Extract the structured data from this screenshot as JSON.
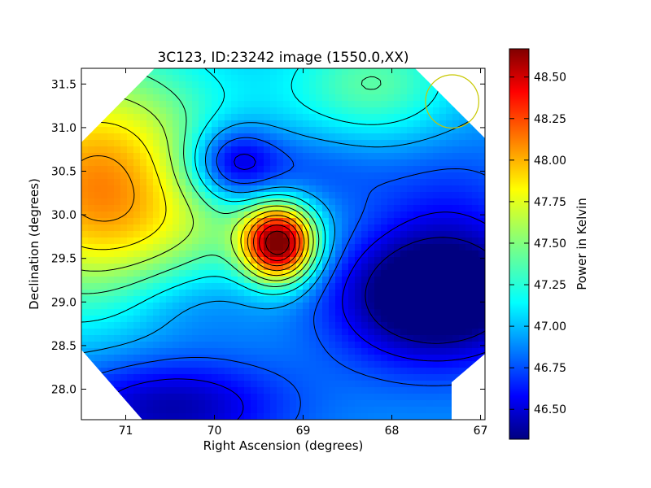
{
  "chart_data": {
    "type": "heatmap",
    "title": "3C123, ID:23242 image (1550.0,XX)",
    "xlabel": "Right Ascension (degrees)",
    "ylabel": "Declination (degrees)",
    "xlim": [
      71.5,
      66.95
    ],
    "ylim": [
      27.65,
      31.68
    ],
    "x_ticks": [
      71,
      70,
      69,
      68,
      67
    ],
    "y_ticks": [
      28.0,
      28.5,
      29.0,
      29.5,
      30.0,
      30.5,
      31.0,
      31.5
    ],
    "colorbar": {
      "label": "Power in Kelvin",
      "range": [
        46.32,
        48.67
      ],
      "ticks": [
        46.5,
        46.75,
        47.0,
        47.25,
        47.5,
        47.75,
        48.0,
        48.25,
        48.5
      ],
      "colormap": "jet"
    },
    "field_sources": [
      {
        "ra": 69.27,
        "dec": 29.67,
        "peak": 1.64,
        "width_ra": 0.28,
        "width_dec": 0.3
      },
      {
        "ra": 71.4,
        "dec": 30.3,
        "peak": 0.75,
        "width_ra": 0.9,
        "width_dec": 0.9
      },
      {
        "ra": 71.1,
        "dec": 30.6,
        "peak": 0.35,
        "width_ra": 1.1,
        "width_dec": 1.2
      },
      {
        "ra": 68.2,
        "dec": 31.5,
        "peak": 0.45,
        "width_ra": 0.7,
        "width_dec": 0.5
      },
      {
        "ra": 69.9,
        "dec": 29.9,
        "peak": 0.2,
        "width_ra": 1.0,
        "width_dec": 0.6
      },
      {
        "ra": 67.5,
        "dec": 29.1,
        "peak": -0.95,
        "width_ra": 0.8,
        "width_dec": 0.55
      },
      {
        "ra": 69.8,
        "dec": 30.6,
        "peak": -0.55,
        "width_ra": 0.35,
        "width_dec": 0.3
      },
      {
        "ra": 70.5,
        "dec": 27.8,
        "peak": -0.55,
        "width_ra": 0.9,
        "width_dec": 0.4
      },
      {
        "ra": 70.3,
        "dec": 29.0,
        "peak": -0.2,
        "width_ra": 0.6,
        "width_dec": 0.35
      },
      {
        "ra": 69.2,
        "dec": 30.5,
        "peak": -0.3,
        "width_ra": 0.8,
        "width_dec": 0.35
      },
      {
        "ra": 67.3,
        "dec": 30.3,
        "peak": -0.15,
        "width_ra": 0.6,
        "width_dec": 0.5
      }
    ],
    "field_baseline": 46.95,
    "contour_step": 0.2,
    "beam_marker": {
      "ra": 67.32,
      "dec": 31.3,
      "radius_deg": 0.3,
      "color": "#c8c800"
    },
    "grid": false
  }
}
